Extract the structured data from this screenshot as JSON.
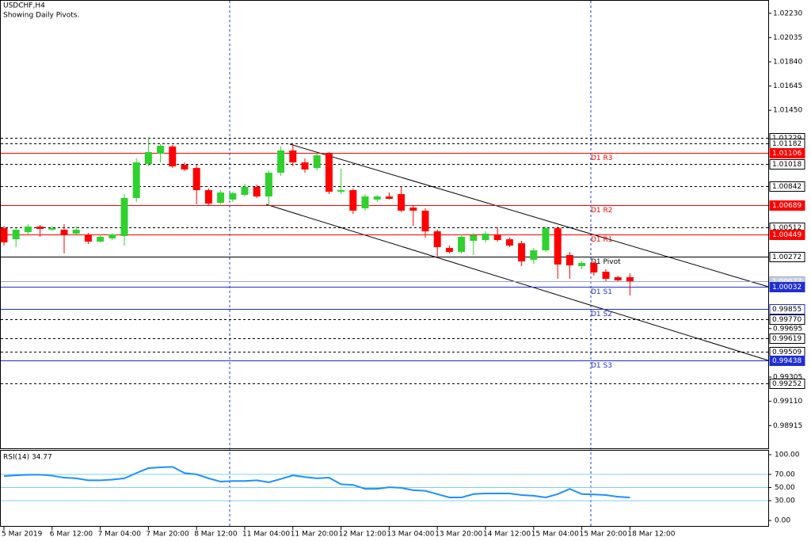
{
  "header": {
    "symbol": "USDCHF,H4",
    "note": "Showing Daily Pivots."
  },
  "chart_data": [
    {
      "type": "candlestick",
      "categories": [
        "5 Mar 2019",
        null,
        null,
        null,
        "6 Mar 12:00",
        null,
        null,
        null,
        "7 Mar 04:00",
        null,
        null,
        null,
        "7 Mar 20:00",
        null,
        null,
        null,
        "8 Mar 12:00",
        null,
        null,
        null,
        "11 Mar 04:00",
        null,
        null,
        null,
        "11 Mar 20:00",
        null,
        null,
        null,
        "12 Mar 12:00",
        null,
        null,
        null,
        "13 Mar 04:00",
        null,
        null,
        null,
        "13 Mar 20:00",
        null,
        null,
        null,
        "14 Mar 12:00",
        null,
        null,
        null,
        "15 Mar 04:00",
        null,
        null,
        null,
        "15 Mar 20:00",
        null,
        null,
        null,
        "18 Mar 12:00"
      ],
      "open": [
        1.00502,
        1.00413,
        1.00471,
        1.00515,
        1.0049,
        1.0049,
        1.00458,
        1.00445,
        1.00394,
        1.0042,
        1.00439,
        1.00745,
        1.01018,
        1.01101,
        1.01159,
        1.01012,
        1.00986,
        1.00808,
        1.00706,
        1.00732,
        1.0077,
        1.00834,
        1.00757,
        1.00948,
        1.01127,
        1.01031,
        1.00986,
        1.01101,
        1.00795,
        1.00808,
        1.00662,
        1.00732,
        1.00757,
        1.00776,
        1.00668,
        1.00643,
        1.00477,
        1.00343,
        1.00311,
        1.00401,
        1.00407,
        1.00452,
        1.00413,
        1.00381,
        1.00248,
        1.00324,
        1.00502,
        1.00286,
        1.00197,
        1.00222,
        1.00152,
        1.00108,
        1.00108
      ],
      "high": [
        1.00522,
        1.00502,
        1.00534,
        1.00528,
        1.00522,
        1.00534,
        1.00515,
        1.00464,
        1.00452,
        1.00464,
        1.00776,
        1.01063,
        1.01235,
        1.01178,
        1.01171,
        1.01031,
        1.01012,
        1.00821,
        1.00808,
        1.00795,
        1.00859,
        1.00853,
        1.00967,
        1.01159,
        1.01178,
        1.01063,
        1.01108,
        1.01114,
        1.0098,
        1.00821,
        1.00776,
        1.0077,
        1.00789,
        1.0084,
        1.00681,
        1.00662,
        1.0049,
        1.00362,
        1.00452,
        1.00464,
        1.00477,
        1.00509,
        1.00426,
        1.00401,
        1.00343,
        1.00515,
        1.00515,
        1.00311,
        1.00235,
        1.00235,
        1.00171,
        1.0012,
        1.00139
      ],
      "low": [
        1.00362,
        1.0035,
        1.00452,
        1.00433,
        1.00477,
        1.00299,
        1.00452,
        1.00375,
        1.00388,
        1.00407,
        1.00362,
        1.00713,
        1.00999,
        1.01031,
        1.00986,
        1.00961,
        1.00694,
        1.00681,
        1.00694,
        1.00713,
        1.00757,
        1.00745,
        1.00694,
        1.00923,
        1.00999,
        1.00948,
        1.00967,
        1.00776,
        1.00776,
        1.00617,
        1.00643,
        1.00713,
        1.00732,
        1.0063,
        1.00522,
        1.00426,
        1.00267,
        1.00299,
        1.00299,
        1.00286,
        1.00388,
        1.00394,
        1.0035,
        1.00197,
        1.00216,
        1.00311,
        1.00095,
        1.00095,
        1.00171,
        1.0012,
        1.00076,
        1.00076,
        0.99961
      ],
      "close": [
        1.00388,
        1.0049,
        1.00515,
        1.00496,
        1.00502,
        1.00445,
        1.0049,
        1.00394,
        1.00433,
        1.00452,
        1.00745,
        1.01031,
        1.01114,
        1.01165,
        1.00999,
        1.00974,
        1.00808,
        1.007,
        1.00789,
        1.00783,
        1.00834,
        1.00757,
        1.00948,
        1.01127,
        1.01031,
        1.00974,
        1.01088,
        1.00795,
        1.00808,
        1.00643,
        1.00757,
        1.00757,
        1.00738,
        1.00643,
        1.00643,
        1.00477,
        1.0035,
        1.00311,
        1.00433,
        1.00445,
        1.00458,
        1.00407,
        1.00362,
        1.00235,
        1.00324,
        1.00502,
        1.0021,
        1.00203,
        1.00222,
        1.00146,
        1.00095,
        1.00082,
        1.00076
      ],
      "up_color": "#2fd12f",
      "down_color": "#ff0000",
      "ylim": [
        0.98732,
        1.02324
      ],
      "yticks": [
        {
          "value": 1.0223,
          "label": "1.02230"
        },
        {
          "value": 1.02035,
          "label": "1.02035"
        },
        {
          "value": 1.0184,
          "label": "1.01840"
        },
        {
          "value": 1.01645,
          "label": "1.01645"
        },
        {
          "value": 1.0145,
          "label": "1.01450"
        },
        {
          "value": 0.99695,
          "label": "0.99695"
        },
        {
          "value": 0.99305,
          "label": "0.99305"
        },
        {
          "value": 0.9911,
          "label": "0.99110"
        },
        {
          "value": 0.98915,
          "label": "0.98915"
        }
      ],
      "levels": [
        {
          "value": 1.01229,
          "label": "1.01229",
          "color": "#000000",
          "dash": true,
          "label_bg": "#ffffff",
          "label_color": "#000000"
        },
        {
          "value": 1.01182,
          "label": "1.01182",
          "color": "#000000",
          "dash": true,
          "label_bg": "#ffffff",
          "label_color": "#000000"
        },
        {
          "value": 1.01106,
          "label": "1.01106",
          "color": "#ff0000",
          "dash": false,
          "label_bg": "#ff0000",
          "label_color": "#ffffff",
          "name": "D1 R3"
        },
        {
          "value": 1.01018,
          "label": "1.01018",
          "color": "#000000",
          "dash": true,
          "label_bg": "#ffffff",
          "label_color": "#000000"
        },
        {
          "value": 1.00842,
          "label": "1.00842",
          "color": "#000000",
          "dash": true,
          "label_bg": "#ffffff",
          "label_color": "#000000"
        },
        {
          "value": 1.00689,
          "label": "1.00689",
          "color": "#ff0000",
          "dash": false,
          "label_bg": "#ff0000",
          "label_color": "#ffffff",
          "name": "D1 R2"
        },
        {
          "value": 1.00512,
          "label": "1.00512",
          "color": "#000000",
          "dash": true,
          "label_bg": "#ffffff",
          "label_color": "#000000"
        },
        {
          "value": 1.00449,
          "label": "1.00449",
          "color": "#ff0000",
          "dash": false,
          "label_bg": "#ff0000",
          "label_color": "#ffffff",
          "name": "D1 R1"
        },
        {
          "value": 1.00272,
          "label": "1.00272",
          "color": "#000000",
          "dash": false,
          "label_bg": "#ffffff",
          "label_color": "#000000",
          "name": "D1 Pivot"
        },
        {
          "value": 1.00077,
          "label": "1.00077",
          "color": "#9aa6c8",
          "dash": false,
          "label_bg": "#c8cfe0",
          "label_color": "#ffffff"
        },
        {
          "value": 1.00032,
          "label": "1.00032",
          "color": "#1f2fd0",
          "dash": false,
          "label_bg": "#1f2fd0",
          "label_color": "#ffffff",
          "name": "D1 S1"
        },
        {
          "value": 0.99855,
          "label": "0.99855",
          "color": "#1f2fd0",
          "dash": false,
          "label_bg": "#ffffff",
          "label_color": "#000000",
          "name": "D1 S2"
        },
        {
          "value": 0.9977,
          "label": "0.99770",
          "color": "#000000",
          "dash": true,
          "label_bg": "#ffffff",
          "label_color": "#000000"
        },
        {
          "value": 0.99619,
          "label": "0.99619",
          "color": "#000000",
          "dash": true,
          "label_bg": "#ffffff",
          "label_color": "#000000"
        },
        {
          "value": 0.99509,
          "label": "0.99509",
          "color": "#000000",
          "dash": true,
          "label_bg": "#ffffff",
          "label_color": "#000000"
        },
        {
          "value": 0.99438,
          "label": "0.99438",
          "color": "#1f2fd0",
          "dash": false,
          "label_bg": "#1f2fd0",
          "label_color": "#ffffff",
          "name": "D1 S3"
        },
        {
          "value": 0.99252,
          "label": "0.99252",
          "color": "#000000",
          "dash": true,
          "label_bg": "#ffffff",
          "label_color": "#000000"
        }
      ]
    },
    {
      "type": "line",
      "title": "RSI(14) 34.77",
      "values": [
        67.5,
        68.5,
        69.5,
        69.5,
        68,
        65,
        64,
        61,
        61,
        62,
        64,
        72,
        79.5,
        80.7,
        81.5,
        72,
        70,
        64,
        59,
        60,
        60,
        61,
        58,
        63,
        68.5,
        66,
        64,
        65,
        55,
        54,
        48,
        48,
        50.5,
        49.5,
        46,
        45,
        40,
        35,
        35,
        40,
        41,
        41,
        41,
        38.5,
        37.5,
        35,
        40,
        48,
        40,
        39.5,
        38.5,
        36,
        34.77
      ],
      "color": "#1e90ff",
      "level_color": "#7fd0f0",
      "ylim": [
        0,
        100
      ],
      "yticks": [
        {
          "value": 100,
          "label": "100.00"
        },
        {
          "value": 70,
          "label": "70.00"
        },
        {
          "value": 50,
          "label": "50.00"
        },
        {
          "value": 30,
          "label": "30.00"
        },
        {
          "value": 0,
          "label": "0.00"
        }
      ],
      "levels": [
        70,
        50,
        30
      ]
    }
  ]
}
